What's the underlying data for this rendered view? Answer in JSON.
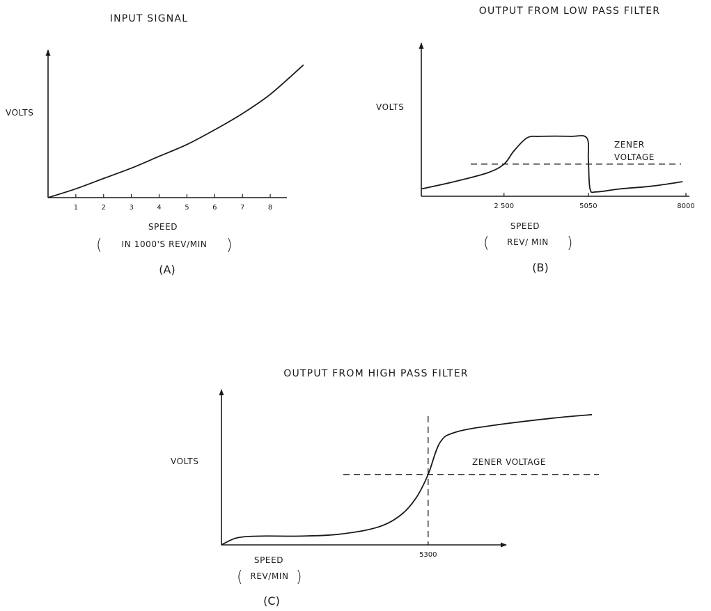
{
  "chart_data": [
    {
      "type": "line",
      "panel": "(A)",
      "title": "INPUT SIGNAL",
      "ylabel": "VOLTS",
      "xlabel": "SPEED",
      "xlabel_sub": "IN 1000'S REV/MIN",
      "xlim": [
        0,
        8.6
      ],
      "ylim": [
        0,
        1.0
      ],
      "x_ticks": [
        1,
        2,
        3,
        4,
        5,
        6,
        7,
        8
      ],
      "x_tick_labels": [
        "1",
        "2",
        "3",
        "4",
        "5",
        "6",
        "7",
        "8"
      ],
      "series": [
        {
          "x": [
            0,
            1,
            2,
            3,
            4,
            5,
            6,
            7,
            8,
            9.2
          ],
          "y": [
            0.0,
            0.06,
            0.13,
            0.2,
            0.28,
            0.36,
            0.46,
            0.57,
            0.7,
            0.9
          ]
        }
      ]
    },
    {
      "type": "line",
      "panel": "(B)",
      "title": "OUTPUT FROM LOW PASS FILTER",
      "ylabel": "VOLTS",
      "xlabel": "SPEED",
      "xlabel_sub": "REV/ MIN",
      "annotation": "ZENER VOLTAGE",
      "xlim": [
        0,
        8000
      ],
      "ylim": [
        0,
        1.0
      ],
      "zener_level": 0.22,
      "x_ticks": [
        2500,
        5050,
        8000
      ],
      "x_tick_labels": [
        "2 500",
        "5050",
        "8000"
      ],
      "series": [
        {
          "x": [
            0,
            1000,
            2000,
            2500,
            2800,
            3200,
            3600,
            4500,
            5000,
            5050,
            5100,
            5300,
            6000,
            7000,
            7900
          ],
          "y": [
            0.05,
            0.1,
            0.16,
            0.22,
            0.31,
            0.4,
            0.41,
            0.41,
            0.4,
            0.25,
            0.05,
            0.03,
            0.05,
            0.07,
            0.1
          ]
        }
      ]
    },
    {
      "type": "line",
      "panel": "(C)",
      "title": "OUTPUT FROM HIGH PASS FILTER",
      "ylabel": "VOLTS",
      "xlabel": "SPEED",
      "xlabel_sub": "REV/MIN",
      "annotation": "ZENER VOLTAGE",
      "xlim": [
        0,
        9500
      ],
      "ylim": [
        0,
        1.0
      ],
      "zener_level": 0.4,
      "marker_x": 5300,
      "x_ticks": [
        5300
      ],
      "x_tick_labels": [
        "5300"
      ],
      "series": [
        {
          "x": [
            0,
            400,
            1000,
            2000,
            3000,
            4000,
            4600,
            5000,
            5300,
            5600,
            6000,
            7000,
            8500,
            9500
          ],
          "y": [
            0.0,
            0.04,
            0.05,
            0.05,
            0.06,
            0.1,
            0.17,
            0.27,
            0.4,
            0.58,
            0.64,
            0.68,
            0.72,
            0.74
          ]
        }
      ]
    }
  ]
}
